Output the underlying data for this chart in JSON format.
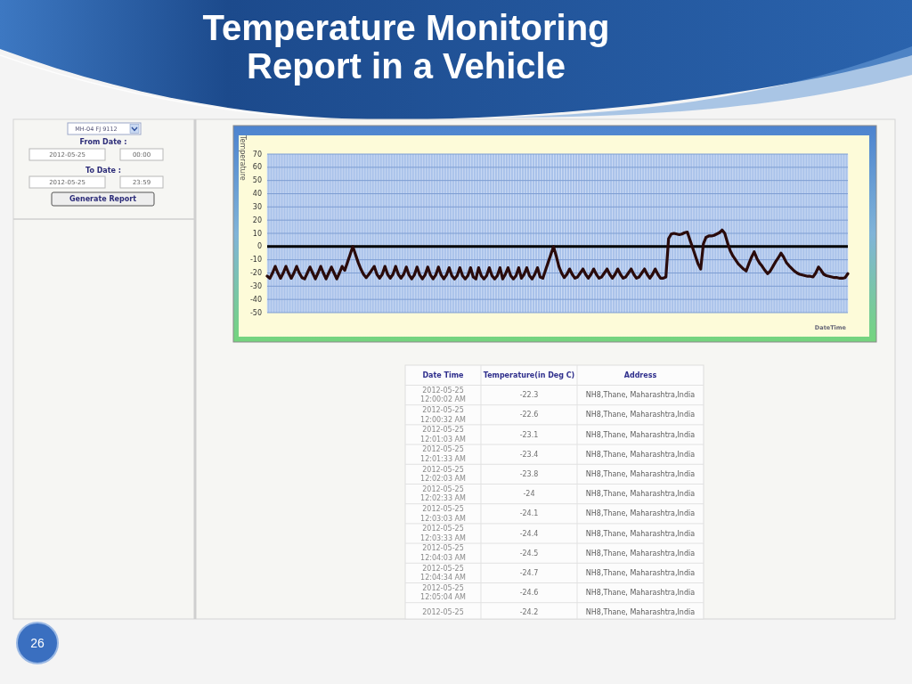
{
  "chart_data": [
    {
      "type": "line",
      "title": "Temperature Monitoring Report in a Vehicle",
      "ylabel": "Temperature",
      "xlabel": "DateTime",
      "categories": [
        null,
        null,
        null,
        null,
        null,
        null,
        null,
        null,
        null,
        null,
        null,
        null,
        null,
        null,
        null,
        null,
        null,
        null,
        null,
        null,
        null,
        null,
        null,
        null,
        null,
        null,
        null,
        null,
        null,
        null,
        null,
        null,
        null,
        null,
        null,
        null,
        null,
        null,
        null,
        null,
        null,
        null,
        null,
        null,
        null,
        null,
        null,
        null,
        null,
        null,
        null,
        null,
        null,
        null,
        null,
        null,
        null,
        null,
        null,
        null,
        null,
        null,
        null,
        null,
        null,
        null,
        null,
        null,
        null,
        null,
        null,
        null,
        null,
        null,
        null,
        null,
        null,
        null,
        null,
        null,
        null,
        null,
        null,
        null,
        null,
        null,
        null,
        null,
        null,
        null,
        null,
        null,
        null,
        null,
        null,
        null,
        null,
        null,
        null,
        null,
        null,
        null,
        null,
        null,
        null,
        null,
        null,
        null,
        null,
        null,
        null,
        null,
        null,
        null,
        null,
        null,
        null,
        null,
        null,
        null,
        null,
        null,
        null,
        null,
        null,
        null,
        null,
        null,
        null,
        null,
        null,
        null,
        null,
        null,
        null,
        null,
        null,
        null,
        null,
        null,
        null,
        null,
        null,
        null,
        null,
        null,
        null,
        null,
        null,
        null,
        null,
        null,
        null,
        null,
        null,
        null,
        null,
        null,
        null,
        null,
        null,
        null,
        null,
        null,
        null,
        null,
        null,
        null,
        null,
        null,
        null,
        null,
        null,
        null,
        null,
        null,
        null,
        null,
        null,
        null,
        null,
        null,
        null,
        null,
        null,
        null,
        null,
        null,
        null,
        null,
        null,
        null,
        null,
        null,
        null,
        null,
        null,
        null,
        null,
        null,
        null,
        null,
        null,
        null,
        null,
        null,
        null,
        null,
        null,
        null,
        null,
        null,
        null,
        null,
        null,
        null,
        null,
        null
      ],
      "values": [
        -22.4,
        -24,
        -20,
        -15,
        -20,
        -24,
        -20,
        -15,
        -20,
        -24,
        -20,
        -15,
        -20,
        -23.5,
        -24.5,
        -20,
        -15.5,
        -20,
        -24.5,
        -20,
        -15,
        -20,
        -24.5,
        -20,
        -15.5,
        -20,
        -24.5,
        -20,
        -15,
        -18,
        -12,
        -6,
        0,
        -6,
        -12,
        -17,
        -21,
        -23.5,
        -21,
        -18,
        -15,
        -21,
        -24,
        -21,
        -15,
        -21,
        -24,
        -21,
        -15,
        -21,
        -24,
        -21,
        -15.5,
        -21.5,
        -24.5,
        -21.5,
        -15.5,
        -21.5,
        -24.5,
        -21.5,
        -15.5,
        -21.5,
        -24.5,
        -21.5,
        -15.5,
        -21.5,
        -24.5,
        -21.5,
        -16,
        -22,
        -24.5,
        -22,
        -16,
        -22,
        -24.5,
        -22,
        -16,
        -23,
        -24.5,
        -16,
        -22,
        -24.5,
        -22,
        -16,
        -22,
        -24.5,
        -22,
        -16,
        -24.5,
        -21,
        -16,
        -22,
        -24.5,
        -22,
        -16,
        -24,
        -21,
        -16,
        -22,
        -24.5,
        -21,
        -16,
        -23,
        -24,
        -18,
        -12,
        -6,
        0,
        -7,
        -15,
        -20,
        -23.5,
        -21,
        -17,
        -21,
        -24,
        -23,
        -20,
        -17,
        -21,
        -24,
        -21,
        -17,
        -21,
        -24,
        -23,
        -20,
        -17,
        -21,
        -24,
        -21,
        -17,
        -21,
        -24,
        -23,
        -20,
        -17,
        -21,
        -24,
        -23,
        -20,
        -17,
        -21,
        -24,
        -21,
        -17,
        -21,
        -24,
        -24,
        -23,
        6,
        9.5,
        10,
        9.5,
        9,
        9.5,
        10.5,
        11,
        5,
        -1,
        -7,
        -13,
        -17,
        2,
        7,
        8,
        8,
        8.5,
        9.5,
        10.5,
        12.5,
        10,
        3,
        -3,
        -7,
        -10,
        -13,
        -15,
        -17,
        -18.5,
        -13,
        -8,
        -4,
        -9,
        -12.5,
        -15,
        -18,
        -20.5,
        -18.5,
        -15,
        -11.5,
        -8.5,
        -5,
        -8,
        -12,
        -14.5,
        -16.5,
        -18.5,
        -20,
        -21,
        -21.5,
        -22,
        -22.5,
        -22.5,
        -23,
        -20,
        -15.5,
        -18,
        -21,
        -22,
        -22.5,
        -23,
        -23.5,
        -23.5,
        -24,
        -24,
        -23.5,
        -20.5
      ],
      "color": "#2a0b0b",
      "ylim": [
        -50,
        70
      ],
      "yticks": [
        -50,
        -40,
        -30,
        -20,
        -10,
        0,
        10,
        20,
        30,
        40,
        50,
        60,
        70
      ],
      "grid": true,
      "ref_lines": [
        {
          "axis": "y",
          "value": 0,
          "color": "#000000"
        }
      ],
      "annotations": [
        "26"
      ]
    },
    {
      "type": "other",
      "annotations": [
        "MH-04 FJ 9112",
        "From Date :",
        "2012-05-25",
        "00:00",
        "To Date :",
        "2012-05-25",
        "23:59",
        "Generate Report"
      ]
    },
    {
      "type": "other",
      "annotations": [
        "Date Time",
        "Temperature(in Deg C)",
        "Address",
        "2012-05-25 12:00:02 AM",
        "-22.3",
        "NH8,Thane, Maharashtra,India",
        "2012-05-25 12:00:32 AM",
        "-22.6",
        "NH8,Thane, Maharashtra,India",
        "2012-05-25 12:01:03 AM",
        "-23.1",
        "NH8,Thane, Maharashtra,India",
        "2012-05-25 12:01:33 AM",
        "-23.4",
        "NH8,Thane, Maharashtra,India",
        "2012-05-25 12:02:03 AM",
        "-23.8",
        "NH8,Thane, Maharashtra,India",
        "2012-05-25 12:02:33 AM",
        "-24",
        "NH8,Thane, Maharashtra,India",
        "2012-05-25 12:03:03 AM",
        "-24.1",
        "NH8,Thane, Maharashtra,India",
        "2012-05-25 12:03:33 AM",
        "-24.4",
        "NH8,Thane, Maharashtra,India",
        "2012-05-25 12:04:03 AM",
        "-24.5",
        "NH8,Thane, Maharashtra,India",
        "2012-05-25 12:04:34 AM",
        "-24.7",
        "NH8,Thane, Maharashtra,India",
        "2012-05-25 12:05:04 AM",
        "-24.6",
        "NH8,Thane, Maharashtra,India",
        "2012-05-25",
        "-24.2",
        "NH8,Thane, Maharashtra,India"
      ]
    }
  ]
}
